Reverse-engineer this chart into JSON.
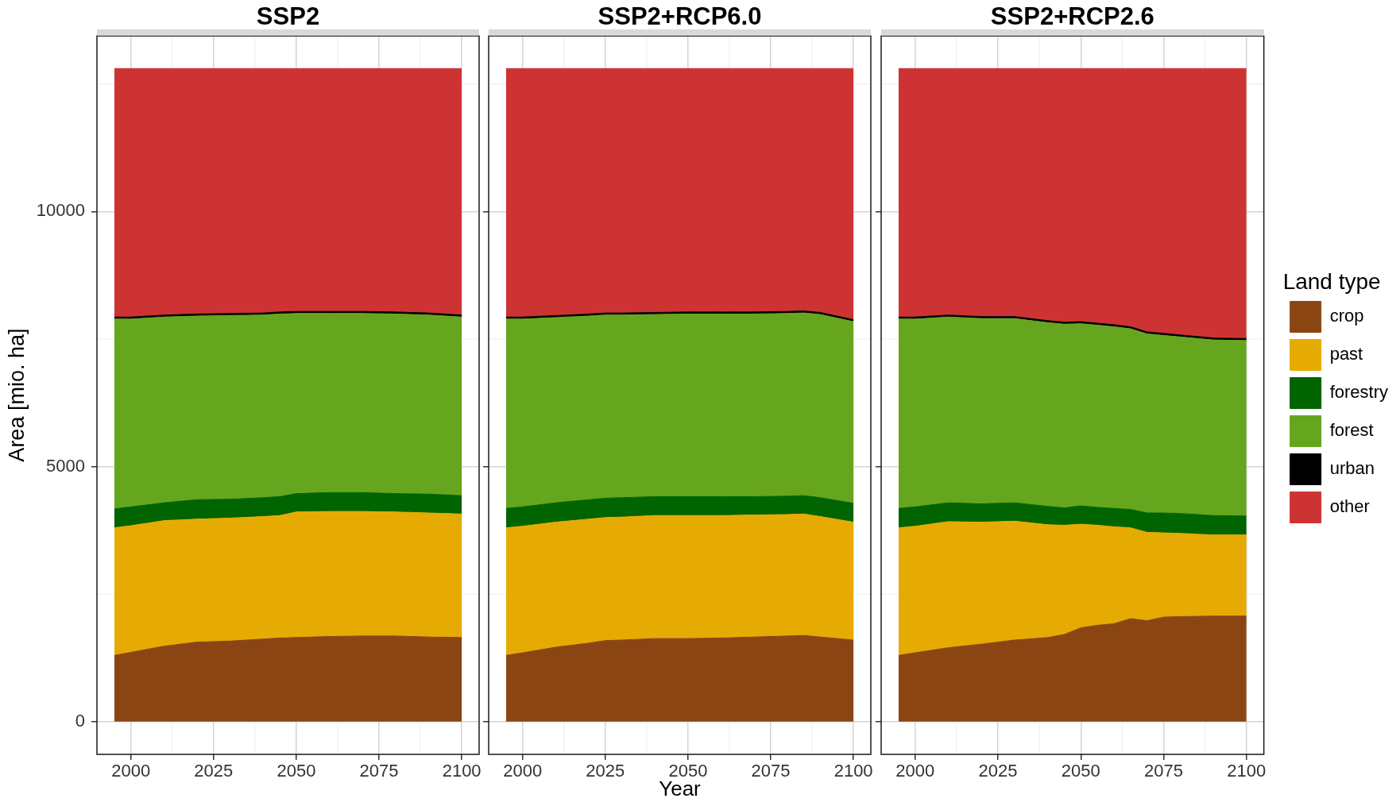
{
  "chart_data": [
    {
      "type": "area",
      "title": "SSP2",
      "ylabel": "Area [mio. ha]",
      "stacked": true,
      "grid": true,
      "x": [
        1995,
        2000,
        2010,
        2020,
        2030,
        2040,
        2045,
        2050,
        2060,
        2070,
        2080,
        2090,
        2100
      ],
      "xlim": [
        1989.75,
        2105.25
      ],
      "xticks": [
        2000,
        2025,
        2050,
        2075,
        2100
      ],
      "ylim": [
        -640,
        13440
      ],
      "yticks": [
        0,
        5000,
        10000
      ],
      "series": [
        {
          "color": "#8b4513",
          "values": [
            1300,
            1360,
            1480,
            1560,
            1580,
            1620,
            1640,
            1650,
            1670,
            1680,
            1680,
            1660,
            1650
          ]
        },
        {
          "color": "#e6ab02",
          "values": [
            2500,
            2480,
            2460,
            2410,
            2410,
            2400,
            2400,
            2460,
            2450,
            2440,
            2430,
            2430,
            2420
          ]
        },
        {
          "color": "#006400",
          "values": [
            370,
            370,
            350,
            380,
            370,
            370,
            370,
            360,
            370,
            370,
            360,
            370,
            360
          ]
        },
        {
          "color": "#66a61e",
          "values": [
            3720,
            3680,
            3640,
            3600,
            3600,
            3580,
            3580,
            3530,
            3510,
            3510,
            3520,
            3510,
            3500
          ]
        },
        {
          "color": "#000000",
          "values": [
            40,
            40,
            40,
            40,
            40,
            40,
            40,
            40,
            40,
            40,
            40,
            40,
            40
          ]
        },
        {
          "color": "#cd3333",
          "values": [
            4870,
            4870,
            4830,
            4810,
            4800,
            4790,
            4770,
            4760,
            4760,
            4760,
            4770,
            4790,
            4830
          ]
        }
      ]
    },
    {
      "type": "area",
      "title": "SSP2+RCP6.0",
      "xlabel": "Year",
      "stacked": true,
      "grid": true,
      "tick_labels": "x",
      "x": [
        1995,
        2000,
        2010,
        2020,
        2025,
        2030,
        2040,
        2050,
        2060,
        2070,
        2080,
        2085,
        2090,
        2100
      ],
      "xlim": [
        1989.75,
        2105.25
      ],
      "xticks": [
        2000,
        2025,
        2050,
        2075,
        2100
      ],
      "ylim": [
        -640,
        13440
      ],
      "yticks": [
        0,
        5000,
        10000
      ],
      "series": [
        {
          "color": "#8b4513",
          "values": [
            1300,
            1350,
            1460,
            1540,
            1590,
            1600,
            1630,
            1630,
            1640,
            1660,
            1680,
            1690,
            1660,
            1600
          ]
        },
        {
          "color": "#e6ab02",
          "values": [
            2500,
            2480,
            2450,
            2430,
            2410,
            2410,
            2410,
            2410,
            2400,
            2390,
            2380,
            2380,
            2360,
            2310
          ]
        },
        {
          "color": "#006400",
          "values": [
            380,
            380,
            380,
            380,
            380,
            380,
            370,
            370,
            370,
            360,
            360,
            360,
            370,
            370
          ]
        },
        {
          "color": "#66a61e",
          "values": [
            3710,
            3680,
            3630,
            3600,
            3590,
            3580,
            3570,
            3580,
            3580,
            3580,
            3580,
            3580,
            3590,
            3560
          ]
        },
        {
          "color": "#000000",
          "values": [
            40,
            40,
            40,
            40,
            40,
            40,
            40,
            40,
            40,
            40,
            40,
            40,
            40,
            40
          ]
        },
        {
          "color": "#cd3333",
          "values": [
            4870,
            4870,
            4840,
            4810,
            4790,
            4790,
            4780,
            4770,
            4770,
            4770,
            4760,
            4750,
            4780,
            4920
          ]
        }
      ]
    },
    {
      "type": "area",
      "title": "SSP2+RCP2.6",
      "stacked": true,
      "grid": true,
      "tick_labels": "x",
      "legend": "right",
      "legend_title": "Land type",
      "x": [
        1995,
        2000,
        2010,
        2020,
        2030,
        2040,
        2045,
        2050,
        2055,
        2060,
        2065,
        2070,
        2075,
        2080,
        2090,
        2100
      ],
      "xlim": [
        1989.75,
        2105.25
      ],
      "xticks": [
        2000,
        2025,
        2050,
        2075,
        2100
      ],
      "ylim": [
        -640,
        13440
      ],
      "yticks": [
        0,
        5000,
        10000
      ],
      "series": [
        {
          "name": "crop",
          "color": "#8b4513",
          "values": [
            1300,
            1350,
            1450,
            1520,
            1600,
            1650,
            1710,
            1840,
            1890,
            1920,
            2020,
            1980,
            2050,
            2060,
            2070,
            2070
          ]
        },
        {
          "name": "past",
          "color": "#e6ab02",
          "values": [
            2500,
            2480,
            2470,
            2390,
            2330,
            2210,
            2140,
            2030,
            1960,
            1900,
            1780,
            1730,
            1650,
            1630,
            1590,
            1590
          ]
        },
        {
          "name": "forestry",
          "color": "#006400",
          "values": [
            380,
            380,
            370,
            360,
            360,
            360,
            340,
            360,
            350,
            360,
            360,
            380,
            390,
            390,
            380,
            370
          ]
        },
        {
          "name": "forest",
          "color": "#66a61e",
          "values": [
            3710,
            3680,
            3640,
            3630,
            3610,
            3600,
            3600,
            3570,
            3570,
            3560,
            3540,
            3510,
            3480,
            3460,
            3440,
            3440
          ]
        },
        {
          "name": "urban",
          "color": "#000000",
          "values": [
            40,
            40,
            40,
            40,
            40,
            40,
            40,
            40,
            40,
            40,
            40,
            40,
            40,
            40,
            40,
            40
          ]
        },
        {
          "name": "other",
          "color": "#cd3333",
          "values": [
            4870,
            4870,
            4830,
            4860,
            4860,
            4940,
            4970,
            4960,
            4990,
            5020,
            5060,
            5160,
            5190,
            5220,
            5280,
            5290
          ]
        }
      ]
    }
  ]
}
